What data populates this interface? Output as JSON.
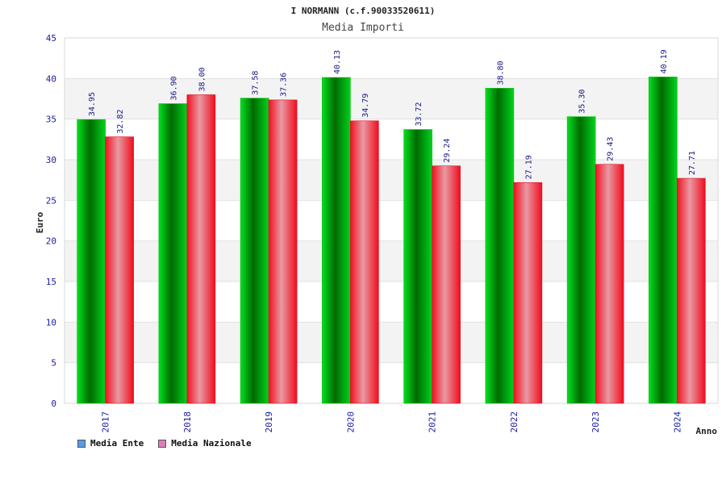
{
  "chart_data": {
    "type": "bar",
    "title": "I NORMANN (c.f.90033520611)",
    "subtitle": "Media Importi",
    "xlabel": "Anno",
    "ylabel": "Euro",
    "categories": [
      "2017",
      "2018",
      "2019",
      "2020",
      "2021",
      "2022",
      "2023",
      "2024"
    ],
    "ylim": [
      0,
      45
    ],
    "yticks": [
      "0",
      "5",
      "10",
      "15",
      "20",
      "25",
      "30",
      "35",
      "40",
      "45"
    ],
    "grid": true,
    "legend_position": "bottom-left",
    "series": [
      {
        "name": "Media Ente",
        "values": [
          34.95,
          36.9,
          37.58,
          40.13,
          33.72,
          38.8,
          35.3,
          40.19
        ],
        "labels": [
          "34.95",
          "36.90",
          "37.58",
          "40.13",
          "33.72",
          "38.80",
          "35.30",
          "40.19"
        ],
        "color": "#00b400",
        "legend_color": "#5b9be6"
      },
      {
        "name": "Media Nazionale",
        "values": [
          32.82,
          38.0,
          37.36,
          34.79,
          29.24,
          27.19,
          29.43,
          27.71
        ],
        "labels": [
          "32.82",
          "38.00",
          "37.36",
          "34.79",
          "29.24",
          "27.19",
          "29.43",
          "27.71"
        ],
        "color": "#ee1a2a",
        "legend_color": "#e07bb8"
      }
    ]
  }
}
